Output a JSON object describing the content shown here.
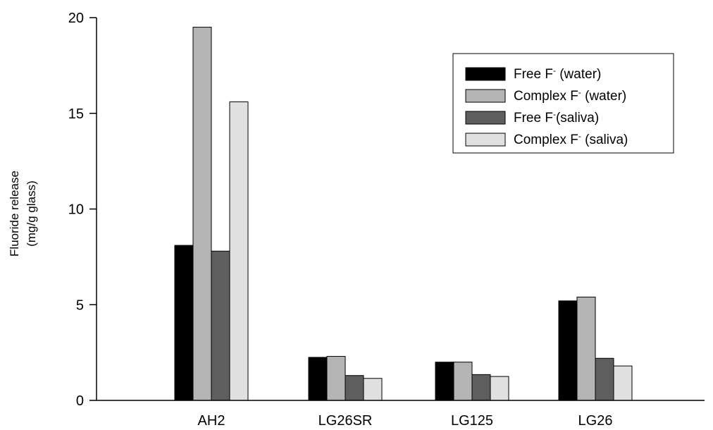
{
  "chart_data": {
    "type": "bar",
    "ylabel_line1": "Fluoride release",
    "ylabel_line2": "(mg/g glass)",
    "categories": [
      "AH2",
      "LG26SR",
      "LG125",
      "LG26"
    ],
    "ylim": [
      0,
      20
    ],
    "yticks": [
      0,
      5,
      10,
      15,
      20
    ],
    "legend_position": "top-right",
    "series": [
      {
        "name": "Free F",
        "name_sup": "-",
        "name_suffix": " (water)",
        "color": "#000000",
        "values": [
          8.1,
          2.25,
          2.0,
          5.2
        ]
      },
      {
        "name": "Complex F",
        "name_sup": "-",
        "name_suffix": " (water)",
        "color": "#b4b4b4",
        "values": [
          19.5,
          2.3,
          2.0,
          5.4
        ]
      },
      {
        "name": "Free F",
        "name_sup": "-",
        "name_suffix": "(saliva)",
        "color": "#5e5e5e",
        "values": [
          7.8,
          1.3,
          1.35,
          2.2
        ]
      },
      {
        "name": "Complex F",
        "name_sup": "-",
        "name_suffix": " (saliva)",
        "color": "#e0e0e0",
        "values": [
          15.6,
          1.15,
          1.25,
          1.8
        ]
      }
    ]
  }
}
